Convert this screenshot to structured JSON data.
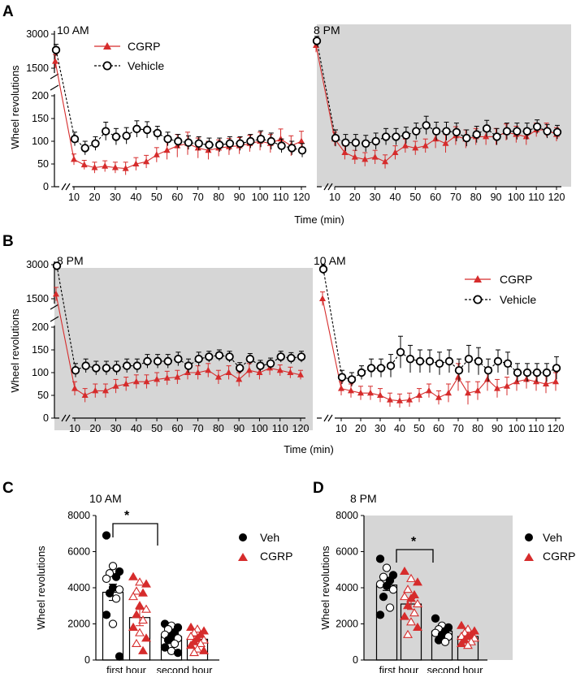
{
  "panels": {
    "A": {
      "letter": "A",
      "left_label": "10 AM",
      "right_label": "8 PM",
      "ylabel": "Wheel revolutions",
      "xlabel": "Time (min)"
    },
    "B": {
      "letter": "B",
      "left_label": "8 PM",
      "right_label": "10 AM",
      "ylabel": "Wheel revolutions",
      "xlabel": "Time (min)"
    },
    "C": {
      "letter": "C",
      "title": "10 AM",
      "ylabel": "Wheel revolutions",
      "significance": "*"
    },
    "D": {
      "letter": "D",
      "title": "8 PM",
      "ylabel": "Wheel revolutions",
      "significance": "*"
    }
  },
  "legend": {
    "cgrp": "CGRP",
    "vehicle": "Vehicle",
    "veh": "Veh"
  },
  "colors": {
    "cgrp": "#d62c2c",
    "vehicle": "#000000",
    "shade": "#d6d6d6"
  },
  "chart_data": [
    {
      "id": "A-left",
      "type": "line",
      "title": "10 AM",
      "shaded": false,
      "xlabel": "Time (min)",
      "ylabel": "Wheel revolutions",
      "x": [
        5,
        10,
        15,
        20,
        25,
        30,
        35,
        40,
        45,
        50,
        55,
        60,
        65,
        70,
        75,
        80,
        85,
        90,
        95,
        100,
        105,
        110,
        115,
        120
      ],
      "xticks": [
        10,
        20,
        30,
        40,
        50,
        60,
        70,
        80,
        90,
        100,
        110,
        120
      ],
      "yticks_low": [
        0,
        50,
        100,
        150,
        200
      ],
      "yticks_high": [
        1500,
        3000
      ],
      "series": [
        {
          "name": "CGRP",
          "values": [
            1800,
            60,
            48,
            42,
            45,
            42,
            40,
            50,
            55,
            70,
            80,
            90,
            95,
            85,
            80,
            85,
            88,
            90,
            95,
            100,
            95,
            105,
            90,
            100
          ],
          "errors": [
            300,
            12,
            10,
            12,
            12,
            12,
            14,
            14,
            14,
            16,
            20,
            25,
            25,
            22,
            20,
            18,
            18,
            18,
            18,
            20,
            20,
            22,
            22,
            22
          ]
        },
        {
          "name": "Vehicle",
          "values": [
            2300,
            105,
            85,
            95,
            122,
            110,
            112,
            127,
            125,
            118,
            105,
            100,
            97,
            95,
            92,
            92,
            95,
            95,
            100,
            105,
            100,
            90,
            85,
            80
          ],
          "errors": [
            250,
            15,
            15,
            15,
            20,
            18,
            18,
            18,
            18,
            15,
            15,
            15,
            15,
            15,
            15,
            15,
            15,
            15,
            15,
            18,
            18,
            15,
            15,
            15
          ]
        }
      ]
    },
    {
      "id": "A-right",
      "type": "line",
      "title": "8 PM",
      "shaded": true,
      "xlabel": "Time (min)",
      "ylabel": "",
      "x": [
        5,
        10,
        15,
        20,
        25,
        30,
        35,
        40,
        45,
        50,
        55,
        60,
        65,
        70,
        75,
        80,
        85,
        90,
        95,
        100,
        105,
        110,
        115,
        120
      ],
      "xticks": [
        10,
        20,
        30,
        40,
        50,
        60,
        70,
        80,
        90,
        100,
        110,
        120
      ],
      "yticks_low": [
        0,
        50,
        100,
        150,
        200
      ],
      "yticks_high": [
        1500,
        3000
      ],
      "series": [
        {
          "name": "CGRP",
          "values": [
            2500,
            105,
            75,
            65,
            60,
            65,
            55,
            75,
            90,
            85,
            90,
            105,
            95,
            112,
            105,
            110,
            110,
            110,
            120,
            115,
            110,
            125,
            125,
            115
          ],
          "errors": [
            300,
            15,
            15,
            15,
            15,
            15,
            15,
            15,
            15,
            15,
            15,
            20,
            20,
            20,
            20,
            18,
            18,
            18,
            18,
            18,
            18,
            15,
            15,
            15
          ]
        },
        {
          "name": "Vehicle",
          "values": [
            2700,
            107,
            97,
            97,
            95,
            100,
            110,
            110,
            113,
            122,
            135,
            122,
            122,
            120,
            107,
            115,
            128,
            110,
            122,
            122,
            122,
            132,
            122,
            120
          ],
          "errors": [
            200,
            18,
            18,
            18,
            18,
            18,
            18,
            18,
            18,
            18,
            20,
            20,
            20,
            20,
            18,
            18,
            18,
            18,
            18,
            18,
            18,
            15,
            15,
            15
          ]
        }
      ]
    },
    {
      "id": "B-left",
      "type": "line",
      "title": "8 PM",
      "shaded": true,
      "xlabel": "Time (min)",
      "ylabel": "Wheel revolutions",
      "x": [
        5,
        10,
        15,
        20,
        25,
        30,
        35,
        40,
        45,
        50,
        55,
        60,
        65,
        70,
        75,
        80,
        85,
        90,
        95,
        100,
        105,
        110,
        115,
        120
      ],
      "xticks": [
        10,
        20,
        30,
        40,
        50,
        60,
        70,
        80,
        90,
        100,
        110,
        120
      ],
      "yticks_low": [
        0,
        50,
        100,
        150,
        200
      ],
      "yticks_high": [
        1500,
        3000
      ],
      "series": [
        {
          "name": "CGRP",
          "values": [
            1700,
            65,
            50,
            60,
            60,
            70,
            75,
            80,
            80,
            85,
            88,
            90,
            100,
            100,
            105,
            90,
            100,
            85,
            105,
            100,
            110,
            105,
            100,
            95
          ],
          "errors": [
            300,
            15,
            15,
            15,
            15,
            15,
            15,
            15,
            15,
            15,
            15,
            15,
            15,
            15,
            15,
            15,
            15,
            15,
            15,
            15,
            15,
            12,
            12,
            10
          ]
        },
        {
          "name": "Vehicle",
          "values": [
            2950,
            105,
            115,
            110,
            110,
            110,
            115,
            115,
            125,
            125,
            125,
            130,
            115,
            130,
            135,
            138,
            135,
            110,
            130,
            115,
            120,
            135,
            132,
            135
          ],
          "errors": [
            150,
            15,
            15,
            15,
            15,
            15,
            15,
            15,
            15,
            15,
            15,
            15,
            15,
            15,
            12,
            12,
            12,
            12,
            12,
            12,
            12,
            12,
            12,
            12
          ]
        }
      ]
    },
    {
      "id": "B-right",
      "type": "line",
      "title": "10 AM",
      "shaded": false,
      "xlabel": "Time (min)",
      "ylabel": "",
      "x": [
        5,
        10,
        15,
        20,
        25,
        30,
        35,
        40,
        45,
        50,
        55,
        60,
        65,
        70,
        75,
        80,
        85,
        90,
        95,
        100,
        105,
        110,
        115,
        120
      ],
      "xticks": [
        10,
        20,
        30,
        40,
        50,
        60,
        70,
        80,
        90,
        100,
        110,
        120
      ],
      "yticks_low": [
        0,
        50,
        100,
        150,
        200
      ],
      "yticks_high": [
        1500,
        3000
      ],
      "series": [
        {
          "name": "CGRP",
          "values": [
            1500,
            65,
            60,
            55,
            55,
            50,
            40,
            38,
            40,
            50,
            60,
            45,
            55,
            90,
            55,
            60,
            85,
            65,
            70,
            80,
            85,
            80,
            75,
            80
          ],
          "errors": [
            300,
            15,
            15,
            15,
            15,
            15,
            15,
            15,
            15,
            15,
            15,
            15,
            20,
            30,
            25,
            20,
            25,
            20,
            20,
            20,
            20,
            20,
            20,
            20
          ]
        },
        {
          "name": "Vehicle",
          "values": [
            2800,
            90,
            85,
            100,
            110,
            110,
            115,
            145,
            130,
            125,
            125,
            120,
            125,
            105,
            130,
            125,
            105,
            125,
            120,
            100,
            100,
            100,
            100,
            110
          ],
          "errors": [
            200,
            15,
            15,
            15,
            20,
            20,
            25,
            35,
            30,
            25,
            25,
            25,
            25,
            25,
            30,
            30,
            25,
            25,
            25,
            20,
            20,
            20,
            20,
            25
          ]
        }
      ]
    },
    {
      "id": "C",
      "type": "bar",
      "title": "10 AM",
      "shaded": false,
      "ylabel": "Wheel revolutions",
      "ylim": [
        0,
        8000
      ],
      "yticks": [
        0,
        2000,
        4000,
        6000,
        8000
      ],
      "categories": [
        "first hour",
        "second hour"
      ],
      "series": [
        {
          "name": "Veh",
          "values": [
            3750,
            1300
          ],
          "errors": [
            450,
            200
          ],
          "points": [
            [
              6900,
              5200,
              4900,
              4800,
              4600,
              4500,
              4000,
              3900,
              3700,
              3400,
              2500,
              2000,
              200
            ],
            [
              2000,
              1900,
              1800,
              1700,
              1500,
              1400,
              1300,
              1200,
              1100,
              900,
              700,
              500,
              400
            ]
          ]
        },
        {
          "name": "CGRP",
          "values": [
            2350,
            1150
          ],
          "errors": [
            450,
            150
          ],
          "points": [
            [
              4600,
              4300,
              4200,
              3800,
              3700,
              3500,
              3000,
              2800,
              2500,
              2200,
              1800,
              1500,
              1200,
              900,
              500
            ],
            [
              1800,
              1700,
              1600,
              1500,
              1400,
              1300,
              1200,
              1100,
              1000,
              900,
              800,
              600,
              500,
              400
            ]
          ]
        }
      ]
    },
    {
      "id": "D",
      "type": "bar",
      "title": "8 PM",
      "shaded": true,
      "ylabel": "Wheel revolutions",
      "ylim": [
        0,
        8000
      ],
      "yticks": [
        0,
        2000,
        4000,
        6000,
        8000
      ],
      "categories": [
        "first hour",
        "second hour"
      ],
      "series": [
        {
          "name": "Veh",
          "values": [
            4150,
            1600
          ],
          "errors": [
            300,
            150
          ],
          "points": [
            [
              5600,
              5100,
              4700,
              4600,
              4400,
              4200,
              4100,
              3900,
              3500,
              2900,
              2500
            ],
            [
              2300,
              1900,
              1800,
              1700,
              1600,
              1500,
              1400,
              1300,
              1100,
              1000
            ]
          ]
        },
        {
          "name": "CGRP",
          "values": [
            3100,
            1300
          ],
          "errors": [
            300,
            100
          ],
          "points": [
            [
              4900,
              4500,
              4300,
              3900,
              3600,
              3500,
              3400,
              3100,
              3000,
              2600,
              2400,
              2100,
              1800,
              1400
            ],
            [
              1900,
              1700,
              1600,
              1500,
              1400,
              1300,
              1300,
              1200,
              1100,
              1000,
              900,
              800
            ]
          ]
        }
      ]
    }
  ]
}
